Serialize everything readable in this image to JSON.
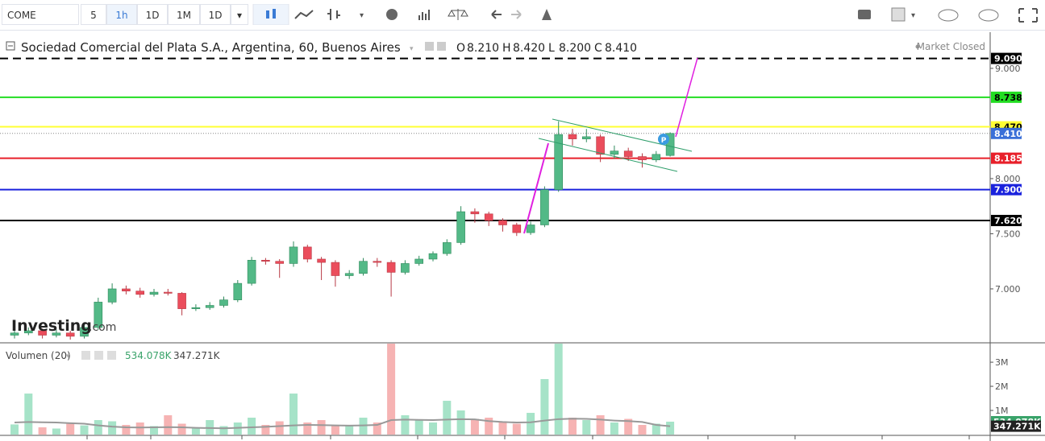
{
  "toolbar": {
    "symbol": "COME",
    "intervals": [
      "5",
      "1h",
      "1D",
      "1M",
      "1D"
    ]
  },
  "chart_data": {
    "type": "candlestick",
    "title": "Sociedad Comercial del Plata S.A., Argentina, 60, Buenos Aires",
    "ohlc_labels": [
      "O",
      "H",
      "L",
      "C"
    ],
    "ohlc_values": [
      "8.210",
      "8.420",
      "8.200",
      "8.410"
    ],
    "status": "Market Closed",
    "watermark": "Investing",
    "watermark_suffix": ".com",
    "marker": "P",
    "up_color": "#53b987",
    "down_color": "#eb4d5c",
    "ylim": [
      6.518,
      9.328
    ],
    "yticks": [
      {
        "value": 7,
        "label": "7.000"
      },
      {
        "value": 7.5,
        "label": "7.500"
      },
      {
        "value": 8,
        "label": "8.000"
      },
      {
        "value": 9,
        "label": "9.000"
      }
    ],
    "levels": [
      {
        "value": 9.09,
        "label": "9.090",
        "color": "#000000",
        "text_color": "#ffffff",
        "style": "dashed"
      },
      {
        "value": 8.738,
        "label": "8.738",
        "color": "#22dd22",
        "text_color": "#000000",
        "style": "solid"
      },
      {
        "value": 8.47,
        "label": "8.470",
        "color": "#ffff33",
        "text_color": "#000000",
        "style": "solid"
      },
      {
        "value": 8.41,
        "label": "8.410",
        "color": "#3a6fd8",
        "text_color": "#ffffff",
        "style": "dotted"
      },
      {
        "value": 8.185,
        "label": "8.185",
        "color": "#e8202a",
        "text_color": "#ffffff",
        "style": "solid"
      },
      {
        "value": 7.9,
        "label": "7.900",
        "color": "#1a22dd",
        "text_color": "#ffffff",
        "style": "solid"
      },
      {
        "value": 7.62,
        "label": "7.620",
        "color": "#000000",
        "text_color": "#ffffff",
        "style": "solid"
      }
    ],
    "candles": [
      [
        6.58,
        6.63,
        6.55,
        6.6
      ],
      [
        6.6,
        6.65,
        6.58,
        6.62
      ],
      [
        6.62,
        6.64,
        6.55,
        6.58
      ],
      [
        6.58,
        6.63,
        6.56,
        6.6
      ],
      [
        6.6,
        6.62,
        6.54,
        6.57
      ],
      [
        6.57,
        6.68,
        6.55,
        6.65
      ],
      [
        6.65,
        6.92,
        6.63,
        6.88
      ],
      [
        6.88,
        7.05,
        6.86,
        7
      ],
      [
        7,
        7.03,
        6.95,
        6.98
      ],
      [
        6.98,
        7.01,
        6.92,
        6.95
      ],
      [
        6.95,
        7,
        6.93,
        6.97
      ],
      [
        6.97,
        7,
        6.94,
        6.96
      ],
      [
        6.96,
        6.97,
        6.76,
        6.82
      ],
      [
        6.82,
        6.86,
        6.8,
        6.83
      ],
      [
        6.83,
        6.88,
        6.81,
        6.85
      ],
      [
        6.85,
        6.93,
        6.83,
        6.9
      ],
      [
        6.9,
        7.08,
        6.88,
        7.05
      ],
      [
        7.05,
        7.29,
        7.03,
        7.26
      ],
      [
        7.26,
        7.28,
        7.22,
        7.25
      ],
      [
        7.25,
        7.27,
        7.1,
        7.23
      ],
      [
        7.23,
        7.43,
        7.2,
        7.38
      ],
      [
        7.38,
        7.4,
        7.24,
        7.27
      ],
      [
        7.27,
        7.29,
        7.08,
        7.24
      ],
      [
        7.24,
        7.26,
        7.02,
        7.12
      ],
      [
        7.12,
        7.17,
        7.09,
        7.14
      ],
      [
        7.14,
        7.28,
        7.12,
        7.25
      ],
      [
        7.25,
        7.28,
        7.2,
        7.24
      ],
      [
        7.24,
        7.26,
        6.93,
        7.15
      ],
      [
        7.15,
        7.26,
        7.13,
        7.23
      ],
      [
        7.23,
        7.3,
        7.21,
        7.27
      ],
      [
        7.27,
        7.34,
        7.25,
        7.32
      ],
      [
        7.32,
        7.45,
        7.3,
        7.42
      ],
      [
        7.42,
        7.75,
        7.4,
        7.7
      ],
      [
        7.7,
        7.73,
        7.6,
        7.68
      ],
      [
        7.68,
        7.7,
        7.57,
        7.62
      ],
      [
        7.62,
        7.64,
        7.52,
        7.58
      ],
      [
        7.58,
        7.6,
        7.48,
        7.51
      ],
      [
        7.51,
        7.61,
        7.49,
        7.58
      ],
      [
        7.58,
        7.93,
        7.56,
        7.9
      ],
      [
        7.9,
        8.52,
        7.88,
        8.4
      ],
      [
        8.4,
        8.45,
        8.3,
        8.36
      ],
      [
        8.36,
        8.45,
        8.33,
        8.38
      ],
      [
        8.38,
        8.4,
        8.15,
        8.22
      ],
      [
        8.22,
        8.3,
        8.18,
        8.25
      ],
      [
        8.25,
        8.28,
        8.16,
        8.2
      ],
      [
        8.2,
        8.23,
        8.1,
        8.17
      ],
      [
        8.17,
        8.25,
        8.15,
        8.22
      ],
      [
        8.21,
        8.42,
        8.2,
        8.41
      ]
    ],
    "volume": {
      "name": "Volumen (20)",
      "last_label": "534.078K",
      "ma_last_label": "347.271K",
      "up_color": "#a6e3c8",
      "down_color": "#f6b3b3",
      "ma_color": "#999999",
      "ylim": [
        0,
        3770000
      ],
      "yticks": [
        {
          "value": 1000000,
          "label": "1M"
        },
        {
          "value": 2000000,
          "label": "2M"
        },
        {
          "value": 3000000,
          "label": "3M"
        }
      ],
      "values": [
        420000,
        1700000,
        300000,
        250000,
        450000,
        380000,
        600000,
        550000,
        400000,
        500000,
        350000,
        800000,
        450000,
        300000,
        600000,
        350000,
        500000,
        700000,
        400000,
        550000,
        1700000,
        500000,
        600000,
        400000,
        350000,
        700000,
        500000,
        3800000,
        800000,
        600000,
        500000,
        1400000,
        1000000,
        650000,
        700000,
        550000,
        450000,
        900000,
        2300000,
        3800000,
        700000,
        600000,
        800000,
        500000,
        650000,
        400000,
        450000,
        534078
      ],
      "ma": [
        500000,
        520000,
        510000,
        500000,
        470000,
        450000,
        380000,
        330000,
        300000,
        290000,
        300000,
        310000,
        300000,
        280000,
        270000,
        260000,
        280000,
        300000,
        320000,
        350000,
        380000,
        400000,
        390000,
        380000,
        370000,
        380000,
        400000,
        600000,
        620000,
        610000,
        600000,
        620000,
        640000,
        630000,
        560000,
        520000,
        500000,
        510000,
        580000,
        640000,
        660000,
        650000,
        620000,
        580000,
        560000,
        520000,
        400000,
        347271
      ]
    }
  }
}
